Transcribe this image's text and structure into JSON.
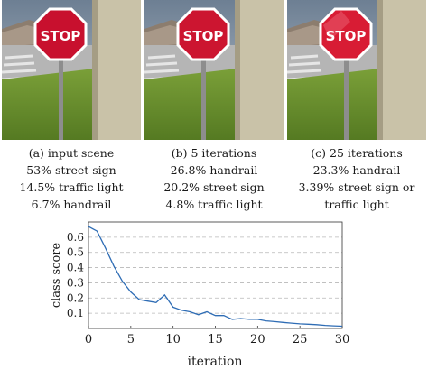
{
  "stop_text": "STOP",
  "captions": [
    {
      "title": "(a) input scene",
      "lines": [
        "53% street sign",
        "14.5% traffic light",
        "6.7% handrail"
      ]
    },
    {
      "title": "(b) 5 iterations",
      "lines": [
        "26.8% handrail",
        "20.2% street sign",
        "4.8% traffic light"
      ]
    },
    {
      "title": "(c) 25 iterations",
      "lines": [
        "23.3% handrail",
        "3.39% street sign or",
        "traffic light"
      ]
    }
  ],
  "chart_data": {
    "type": "line",
    "xlabel": "iteration",
    "ylabel": "class score",
    "xlim": [
      0,
      30
    ],
    "ylim": [
      0,
      0.7
    ],
    "xticks": [
      0,
      5,
      10,
      15,
      20,
      25,
      30
    ],
    "yticks": [
      0.1,
      0.2,
      0.3,
      0.4,
      0.5,
      0.6
    ],
    "grid": "horizontal dashed",
    "color": "#2f6db5",
    "series": [
      {
        "x": [
          0,
          1,
          2,
          3,
          4,
          5,
          6,
          7,
          8,
          9,
          10,
          11,
          12,
          13,
          14,
          15,
          16,
          17,
          18,
          19,
          20,
          21,
          22,
          23,
          24,
          25,
          26,
          27,
          28,
          29,
          30
        ],
        "y": [
          0.67,
          0.64,
          0.53,
          0.41,
          0.31,
          0.24,
          0.19,
          0.18,
          0.17,
          0.22,
          0.14,
          0.12,
          0.11,
          0.09,
          0.11,
          0.085,
          0.085,
          0.06,
          0.065,
          0.06,
          0.06,
          0.05,
          0.045,
          0.04,
          0.035,
          0.03,
          0.028,
          0.025,
          0.02,
          0.017,
          0.015
        ]
      }
    ]
  }
}
